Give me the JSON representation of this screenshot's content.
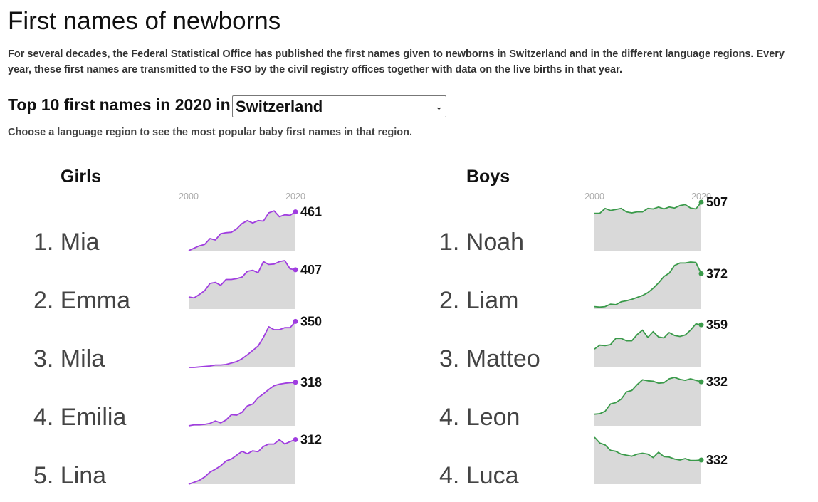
{
  "title": "First names of newborns",
  "intro": "For several decades, the Federal Statistical Office has published the first names given to newborns in Switzerland and in the different language regions. Every year, these first names are transmitted to the FSO by the civil registry offices together with data on the live births in that year.",
  "top10_label": "Top 10 first names in 2020 in",
  "region_selected": "Switzerland",
  "hint": "Choose a language region to see the most popular baby first names in that region.",
  "colors": {
    "girls": "#a03de0",
    "boys": "#3a9a4a",
    "area": "#d9d9d9",
    "axis_text": "#aaaaaa"
  },
  "chart_data": [
    {
      "type": "area",
      "title": "Girls",
      "x_ticks": [
        "2000",
        "2020"
      ],
      "xlim": [
        2000,
        2020
      ],
      "names": [
        {
          "rank": "1.",
          "name": "Mia",
          "value_label": "461",
          "values": [
            0.0,
            0.05,
            0.1,
            0.13,
            0.25,
            0.22,
            0.35,
            0.37,
            0.38,
            0.45,
            0.56,
            0.62,
            0.57,
            0.62,
            0.61,
            0.78,
            0.82,
            0.7,
            0.74,
            0.73,
            0.8
          ]
        },
        {
          "rank": "2.",
          "name": "Emma",
          "value_label": "407",
          "values": [
            0.25,
            0.23,
            0.3,
            0.38,
            0.53,
            0.55,
            0.49,
            0.61,
            0.61,
            0.63,
            0.66,
            0.78,
            0.8,
            0.75,
            0.98,
            0.92,
            0.93,
            0.98,
            1.0,
            0.83,
            0.81
          ]
        },
        {
          "rank": "3.",
          "name": "Mila",
          "value_label": "350",
          "values": [
            0.0,
            0.0,
            0.01,
            0.02,
            0.03,
            0.05,
            0.05,
            0.06,
            0.09,
            0.12,
            0.18,
            0.26,
            0.35,
            0.44,
            0.62,
            0.84,
            0.78,
            0.78,
            0.82,
            0.82,
            0.95
          ]
        },
        {
          "rank": "4.",
          "name": "Emilia",
          "value_label": "318",
          "values": [
            0.0,
            0.02,
            0.02,
            0.03,
            0.05,
            0.1,
            0.06,
            0.12,
            0.23,
            0.22,
            0.28,
            0.41,
            0.45,
            0.58,
            0.66,
            0.75,
            0.83,
            0.86,
            0.88,
            0.89,
            0.9
          ]
        },
        {
          "rank": "5.",
          "name": "Lina",
          "value_label": "312",
          "values": [
            0.0,
            0.04,
            0.08,
            0.15,
            0.25,
            0.31,
            0.38,
            0.48,
            0.52,
            0.6,
            0.68,
            0.63,
            0.69,
            0.67,
            0.78,
            0.83,
            0.83,
            0.92,
            0.83,
            0.88,
            0.92
          ]
        }
      ]
    },
    {
      "type": "area",
      "title": "Boys",
      "x_ticks": [
        "2000",
        "2020"
      ],
      "xlim": [
        2000,
        2020
      ],
      "names": [
        {
          "rank": "1.",
          "name": "Noah",
          "value_label": "507",
          "values": [
            0.77,
            0.77,
            0.87,
            0.83,
            0.85,
            0.87,
            0.8,
            0.78,
            0.8,
            0.8,
            0.87,
            0.86,
            0.9,
            0.86,
            0.9,
            0.88,
            0.93,
            0.95,
            0.88,
            0.86,
            1.0
          ]
        },
        {
          "rank": "2.",
          "name": "Liam",
          "value_label": "372",
          "values": [
            0.05,
            0.04,
            0.05,
            0.1,
            0.09,
            0.15,
            0.17,
            0.2,
            0.24,
            0.28,
            0.34,
            0.43,
            0.54,
            0.67,
            0.74,
            0.9,
            0.95,
            0.95,
            0.97,
            0.96,
            0.73
          ]
        },
        {
          "rank": "3.",
          "name": "Matteo",
          "value_label": "359",
          "values": [
            0.38,
            0.46,
            0.45,
            0.47,
            0.6,
            0.6,
            0.55,
            0.55,
            0.68,
            0.77,
            0.62,
            0.74,
            0.63,
            0.61,
            0.72,
            0.66,
            0.64,
            0.67,
            0.77,
            0.9,
            0.88
          ]
        },
        {
          "rank": "4.",
          "name": "Leon",
          "value_label": "332",
          "values": [
            0.24,
            0.25,
            0.3,
            0.45,
            0.48,
            0.55,
            0.7,
            0.73,
            0.85,
            0.95,
            0.93,
            0.92,
            0.88,
            0.89,
            0.97,
            1.0,
            0.96,
            0.94,
            0.97,
            0.94,
            0.91
          ]
        },
        {
          "rank": "4.",
          "name": "Luca",
          "value_label": "332",
          "values": [
            0.97,
            0.85,
            0.81,
            0.7,
            0.68,
            0.62,
            0.6,
            0.58,
            0.62,
            0.64,
            0.62,
            0.55,
            0.66,
            0.57,
            0.56,
            0.52,
            0.5,
            0.53,
            0.49,
            0.49,
            0.5
          ]
        }
      ]
    }
  ]
}
